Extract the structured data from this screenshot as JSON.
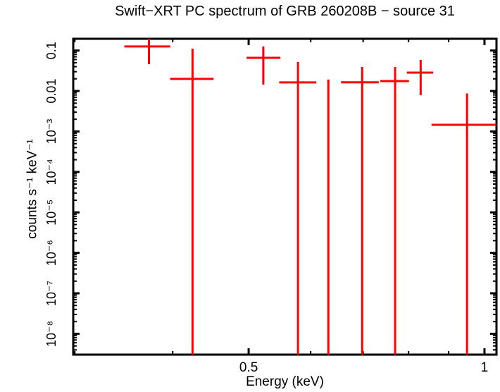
{
  "title": "Swift−XRT PC spectrum of GRB 260208B − source 31",
  "chart_data": {
    "type": "scatter",
    "subtype": "x-ray-spectrum-error-bars",
    "title": "Swift−XRT PC spectrum of GRB 260208B − source 31",
    "xlabel": "Energy (keV)",
    "ylabel": "counts s⁻¹ keV⁻¹",
    "x_scale": "log",
    "y_scale": "log",
    "xlim": [
      0.2986,
      1.0359
    ],
    "ylim": [
      3.05e-09,
      0.1954
    ],
    "grid": false,
    "legend": "none",
    "frame_color": "#000000",
    "series_color": "#ff0000",
    "x_major_ticks": [
      {
        "value": 0.5,
        "label": "0.5"
      },
      {
        "value": 1.0,
        "label": "1"
      }
    ],
    "x_minor_ticks": [
      0.3,
      0.4,
      0.6,
      0.7,
      0.8,
      0.9
    ],
    "y_major_ticks": [
      {
        "value": 0.1,
        "label": "0.1"
      },
      {
        "value": 0.01,
        "label": "0.01"
      },
      {
        "value": 0.001,
        "label": "10⁻³"
      },
      {
        "value": 0.0001,
        "label": "10⁻⁴"
      },
      {
        "value": 1e-05,
        "label": "10⁻⁵"
      },
      {
        "value": 1e-06,
        "label": "10⁻⁶"
      },
      {
        "value": 1e-07,
        "label": "10⁻⁷"
      },
      {
        "value": 1e-08,
        "label": "10⁻⁸"
      }
    ],
    "points_note": "err_hi/err_lo are absolute y-extents of the error bar; null means the bar is clipped at the plot boundary (extends off-scale)",
    "points": [
      {
        "e": 0.373,
        "e_lo": 0.347,
        "e_hi": 0.397,
        "rate": 0.126,
        "err_hi": null,
        "err_lo": 0.046
      },
      {
        "e": 0.424,
        "e_lo": 0.397,
        "e_hi": 0.451,
        "rate": 0.0199,
        "err_hi": 0.111,
        "err_lo": null
      },
      {
        "e": 0.522,
        "e_lo": 0.497,
        "e_hi": 0.549,
        "rate": 0.0662,
        "err_hi": 0.126,
        "err_lo": 0.0144
      },
      {
        "e": 0.578,
        "e_lo": 0.547,
        "e_hi": 0.61,
        "rate": 0.0163,
        "err_hi": 0.052,
        "err_lo": null
      },
      {
        "e": 0.632,
        "e_lo": 0.63,
        "e_hi": 0.634,
        "rate": 0.0181,
        "err_hi": 0.0181,
        "err_lo": null
      },
      {
        "e": 0.698,
        "e_lo": 0.656,
        "e_hi": 0.733,
        "rate": 0.0164,
        "err_hi": 0.0392,
        "err_lo": null
      },
      {
        "e": 0.769,
        "e_lo": 0.736,
        "e_hi": 0.801,
        "rate": 0.0176,
        "err_hi": 0.0392,
        "err_lo": null
      },
      {
        "e": 0.829,
        "e_lo": 0.796,
        "e_hi": 0.86,
        "rate": 0.0285,
        "err_hi": 0.0586,
        "err_lo": 0.0079
      },
      {
        "e": 0.95,
        "e_lo": 0.856,
        "e_hi": 1.036,
        "rate": 0.00146,
        "err_hi": 0.0087,
        "err_lo": null
      }
    ]
  }
}
